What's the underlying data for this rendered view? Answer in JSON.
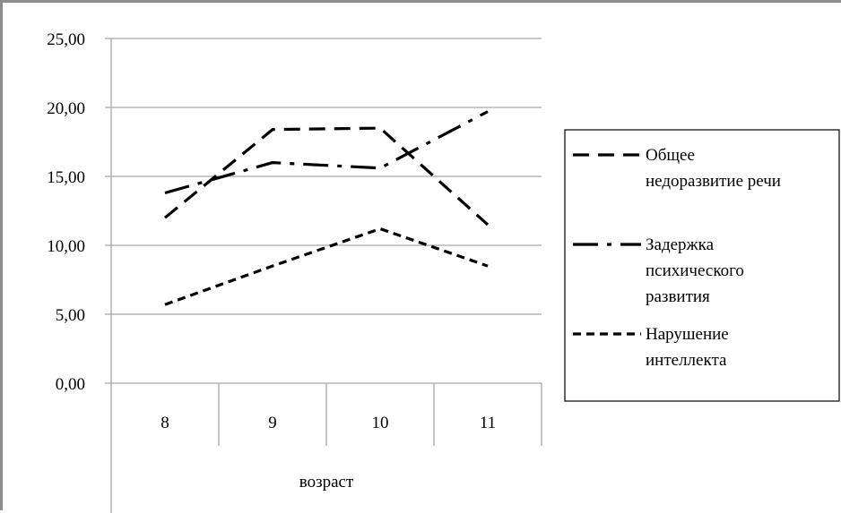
{
  "chart_data": {
    "type": "line",
    "categories": [
      "8",
      "9",
      "10",
      "11"
    ],
    "xlabel": "возраст",
    "ylabel": "",
    "title": "",
    "ylim": [
      0,
      25
    ],
    "yticks": [
      "0,00",
      "5,00",
      "10,00",
      "15,00",
      "20,00",
      "25,00"
    ],
    "grid": true,
    "legend": "right",
    "series": [
      {
        "name": "Общее недоразвитие речи",
        "name_lines": [
          "Общее",
          "недоразвитие речи"
        ],
        "values": [
          12.0,
          18.4,
          18.5,
          11.5
        ],
        "dash": "long-dash"
      },
      {
        "name": "Задержка психического развития",
        "name_lines": [
          "Задержка",
          "психического",
          "развития"
        ],
        "values": [
          13.8,
          16.0,
          15.6,
          19.7
        ],
        "dash": "dash-dot"
      },
      {
        "name": "Нарушение интеллекта",
        "name_lines": [
          "Нарушение",
          "интеллекта"
        ],
        "values": [
          5.7,
          8.5,
          11.2,
          8.5
        ],
        "dash": "short-dash"
      }
    ],
    "colors": {
      "line": "#000000",
      "grid": "#a6a6a6",
      "axis": "#a6a6a6"
    }
  }
}
